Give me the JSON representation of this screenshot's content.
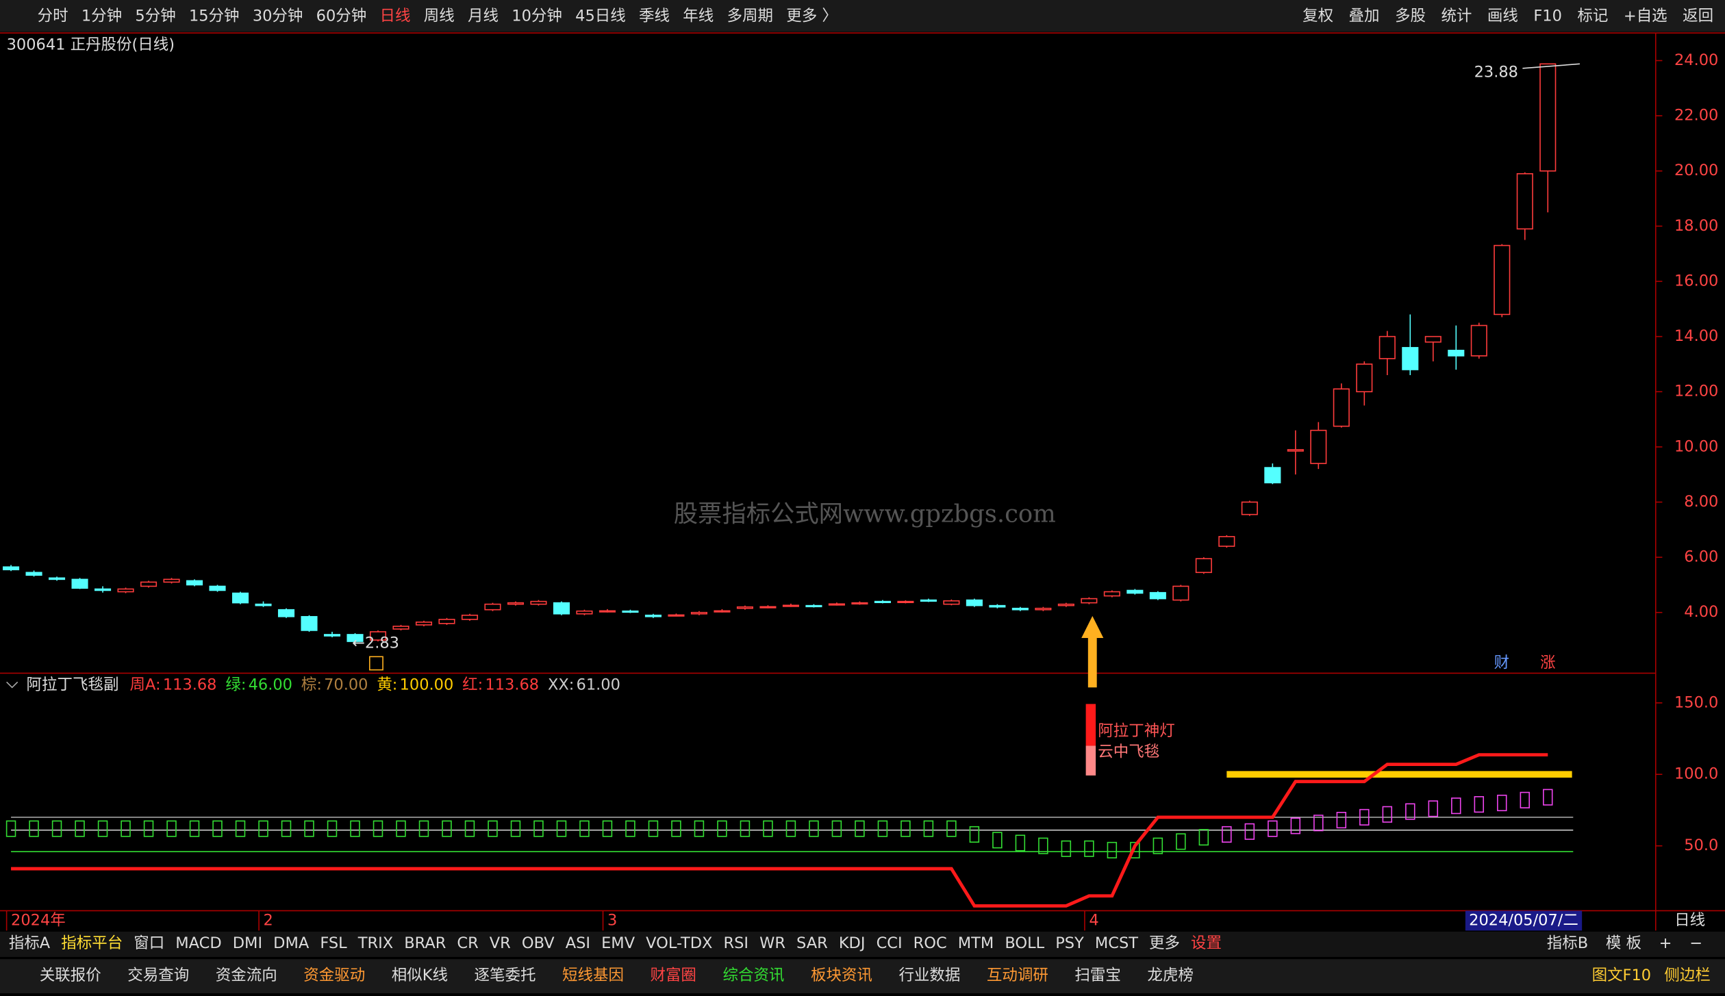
{
  "toolbar": {
    "periods": [
      "分时",
      "1分钟",
      "5分钟",
      "15分钟",
      "30分钟",
      "60分钟",
      "日线",
      "周线",
      "月线",
      "10分钟",
      "45日线",
      "季线",
      "年线",
      "多周期",
      "更多 〉"
    ],
    "tools": [
      "复权",
      "叠加",
      "多股",
      "统计",
      "画线",
      "F10",
      "标记",
      "+自选",
      "返回"
    ]
  },
  "title": "300641 正丹股份(日线)",
  "watermark": "股票指标公式网www.gpzbgs.com",
  "chart_data": {
    "type": "candlestick",
    "open": [
      5.65,
      5.45,
      5.25,
      5.2,
      4.85,
      4.75,
      4.95,
      5.1,
      5.15,
      4.95,
      4.7,
      4.3,
      4.1,
      3.85,
      3.2,
      3.2,
      3.0,
      3.4,
      3.55,
      3.6,
      3.75,
      4.1,
      4.3,
      4.3,
      4.35,
      3.95,
      4.05,
      4.05,
      3.9,
      3.9,
      3.95,
      4.05,
      4.15,
      4.2,
      4.25,
      4.25,
      4.3,
      4.32,
      4.4,
      4.38,
      4.45,
      4.3,
      4.45,
      4.25,
      4.15,
      4.1,
      4.25,
      4.35,
      4.6,
      4.8,
      4.72,
      4.45,
      5.45,
      6.4,
      7.55,
      9.25,
      9.85,
      9.4,
      10.75,
      12.0,
      13.2,
      13.6,
      13.8,
      13.5,
      13.3,
      14.8,
      17.9,
      20.0
    ],
    "close": [
      5.55,
      5.35,
      5.2,
      4.88,
      4.8,
      4.85,
      5.1,
      5.2,
      5.0,
      4.8,
      4.35,
      4.25,
      3.85,
      3.35,
      3.15,
      2.95,
      3.3,
      3.5,
      3.65,
      3.75,
      3.9,
      4.3,
      4.35,
      4.4,
      3.95,
      4.05,
      4.06,
      4.03,
      3.85,
      3.91,
      4.0,
      4.06,
      4.2,
      4.21,
      4.26,
      4.24,
      4.31,
      4.35,
      4.38,
      4.4,
      4.42,
      4.42,
      4.25,
      4.2,
      4.1,
      4.15,
      4.3,
      4.5,
      4.75,
      4.7,
      4.5,
      4.95,
      5.95,
      6.75,
      8.0,
      8.7,
      9.9,
      10.6,
      12.1,
      13.0,
      14.0,
      12.8,
      14.0,
      13.3,
      14.4,
      17.3,
      19.9,
      23.88
    ],
    "high": [
      5.72,
      5.52,
      5.3,
      5.25,
      4.95,
      4.9,
      5.15,
      5.25,
      5.2,
      5.0,
      4.75,
      4.4,
      4.15,
      3.9,
      3.3,
      3.25,
      3.35,
      3.55,
      3.7,
      3.8,
      3.95,
      4.35,
      4.4,
      4.45,
      4.4,
      4.1,
      4.12,
      4.1,
      3.95,
      3.96,
      4.05,
      4.12,
      4.25,
      4.26,
      4.32,
      4.3,
      4.36,
      4.4,
      4.45,
      4.44,
      4.5,
      4.47,
      4.5,
      4.3,
      4.2,
      4.2,
      4.35,
      4.55,
      4.8,
      4.85,
      4.77,
      5.0,
      6.0,
      6.8,
      8.05,
      9.4,
      10.6,
      10.9,
      12.3,
      13.1,
      14.2,
      14.8,
      14.0,
      14.4,
      14.5,
      17.35,
      19.95,
      23.88
    ],
    "low": [
      5.5,
      5.3,
      5.15,
      4.85,
      4.72,
      4.7,
      4.9,
      5.05,
      4.95,
      4.75,
      4.3,
      4.2,
      3.8,
      3.3,
      3.1,
      2.83,
      2.95,
      3.35,
      3.5,
      3.55,
      3.7,
      4.05,
      4.25,
      4.25,
      3.9,
      3.9,
      4.0,
      3.98,
      3.8,
      3.86,
      3.9,
      4.0,
      4.1,
      4.15,
      4.2,
      4.18,
      4.25,
      4.28,
      4.33,
      4.33,
      4.38,
      4.26,
      4.2,
      4.15,
      4.05,
      4.05,
      4.2,
      4.3,
      4.55,
      4.65,
      4.45,
      4.4,
      5.4,
      6.35,
      7.5,
      8.65,
      9.0,
      9.2,
      10.7,
      11.5,
      12.6,
      12.6,
      13.1,
      12.8,
      13.2,
      14.7,
      17.5,
      18.5
    ],
    "ylim": [
      1.8,
      25.0
    ],
    "yticks": [
      {
        "value": 4,
        "label": "4.00"
      },
      {
        "value": 6,
        "label": "6.00"
      },
      {
        "value": 8,
        "label": "8.00"
      },
      {
        "value": 10,
        "label": "10.00"
      },
      {
        "value": 12,
        "label": "12.00"
      },
      {
        "value": 14,
        "label": "14.00"
      },
      {
        "value": 16,
        "label": "16.00"
      },
      {
        "value": 18,
        "label": "18.00"
      },
      {
        "value": 20,
        "label": "20.00"
      },
      {
        "value": 22,
        "label": "22.00"
      },
      {
        "value": 24,
        "label": "24.00"
      }
    ],
    "up_color": "#ff3c3c",
    "down_color": "#54ffff",
    "high_label": "23.88",
    "low_label": "←2.83",
    "tags": [
      "财",
      "涨"
    ],
    "x_labels": [
      {
        "index": 0,
        "label": "2024年"
      },
      {
        "index": 11,
        "label": "2"
      },
      {
        "index": 26,
        "label": "3"
      },
      {
        "index": 47,
        "label": "4"
      }
    ],
    "last_date": "2024/05/07/二",
    "period": "日线"
  },
  "indicator": {
    "type": "line",
    "name": "阿拉丁飞毯副",
    "legend": [
      {
        "label": "周A:",
        "value": 113.68,
        "value_label": "113.68",
        "color": "#ff3c3c"
      },
      {
        "label": "绿:",
        "value": 46,
        "value_label": "46.00",
        "color": "#33dd33"
      },
      {
        "label": "棕:",
        "value": 70,
        "value_label": "70.00",
        "color": "#b08040"
      },
      {
        "label": "黄:",
        "value": 100,
        "value_label": "100.00",
        "color": "#ffcc00"
      },
      {
        "label": "红:",
        "value": 113.68,
        "value_label": "113.68",
        "color": "#ff3c3c"
      },
      {
        "label": "XX:",
        "value": 61,
        "value_label": "61.00",
        "color": "#cccccc"
      }
    ],
    "red_line": [
      34,
      34,
      34,
      34,
      34,
      34,
      34,
      34,
      34,
      34,
      34,
      34,
      34,
      34,
      34,
      34,
      34,
      34,
      34,
      34,
      34,
      34,
      34,
      34,
      34,
      34,
      34,
      34,
      34,
      34,
      34,
      34,
      34,
      34,
      34,
      34,
      34,
      34,
      34,
      34,
      34,
      34,
      8,
      8,
      8,
      8,
      8,
      15,
      15,
      50,
      70,
      70,
      70,
      70,
      70,
      70,
      95,
      95,
      95,
      95,
      107,
      107,
      107,
      107,
      113.68,
      113.68,
      113.68,
      113.68
    ],
    "yellow_start": 53,
    "boxes": [
      62,
      62,
      62,
      62,
      62,
      62,
      62,
      62,
      62,
      62,
      62,
      62,
      62,
      62,
      62,
      62,
      62,
      62,
      62,
      62,
      62,
      62,
      62,
      62,
      62,
      62,
      62,
      62,
      62,
      62,
      62,
      62,
      62,
      62,
      62,
      62,
      62,
      62,
      62,
      62,
      62,
      62,
      58,
      54,
      52,
      50,
      48,
      48,
      47,
      47,
      50,
      53,
      56,
      58,
      60,
      62,
      64,
      66,
      68,
      70,
      72,
      74,
      76,
      78,
      79,
      80,
      82,
      84
    ],
    "signals": [
      "阿拉丁神灯",
      "云中飞毯"
    ],
    "ylim": [
      4.6,
      170
    ],
    "yticks": [
      {
        "value": 50,
        "label": "50.0"
      },
      {
        "value": 100,
        "label": "100.0"
      },
      {
        "value": 150,
        "label": "150.0"
      }
    ]
  },
  "indicator_tabs": {
    "left": [
      "指标A",
      "指标平台",
      "窗口",
      "MACD",
      "DMI",
      "DMA",
      "FSL",
      "TRIX",
      "BRAR",
      "CR",
      "VR",
      "OBV",
      "ASI",
      "EMV",
      "VOL-TDX",
      "RSI",
      "WR",
      "SAR",
      "KDJ",
      "CCI",
      "ROC",
      "MTM",
      "BOLL",
      "PSY",
      "MCST",
      "更多",
      "设置"
    ],
    "right": [
      "指标B",
      "模 板",
      "+",
      "−"
    ]
  },
  "bottom_tabs": {
    "items": [
      "关联报价",
      "交易查询",
      "资金流向",
      "资金驱动",
      "相似K线",
      "逐笔委托",
      "短线基因",
      "财富圈",
      "综合资讯",
      "板块资讯",
      "行业数据",
      "互动调研",
      "扫雷宝",
      "龙虎榜"
    ],
    "colors": [
      "#ddd",
      "#ddd",
      "#ddd",
      "#ff9933",
      "#ddd",
      "#ddd",
      "#ff9933",
      "#ff4444",
      "#33dd33",
      "#ff9933",
      "#ddd",
      "#ff9933",
      "#ddd",
      "#ddd"
    ],
    "right": [
      "图文F10",
      "侧边栏"
    ]
  }
}
